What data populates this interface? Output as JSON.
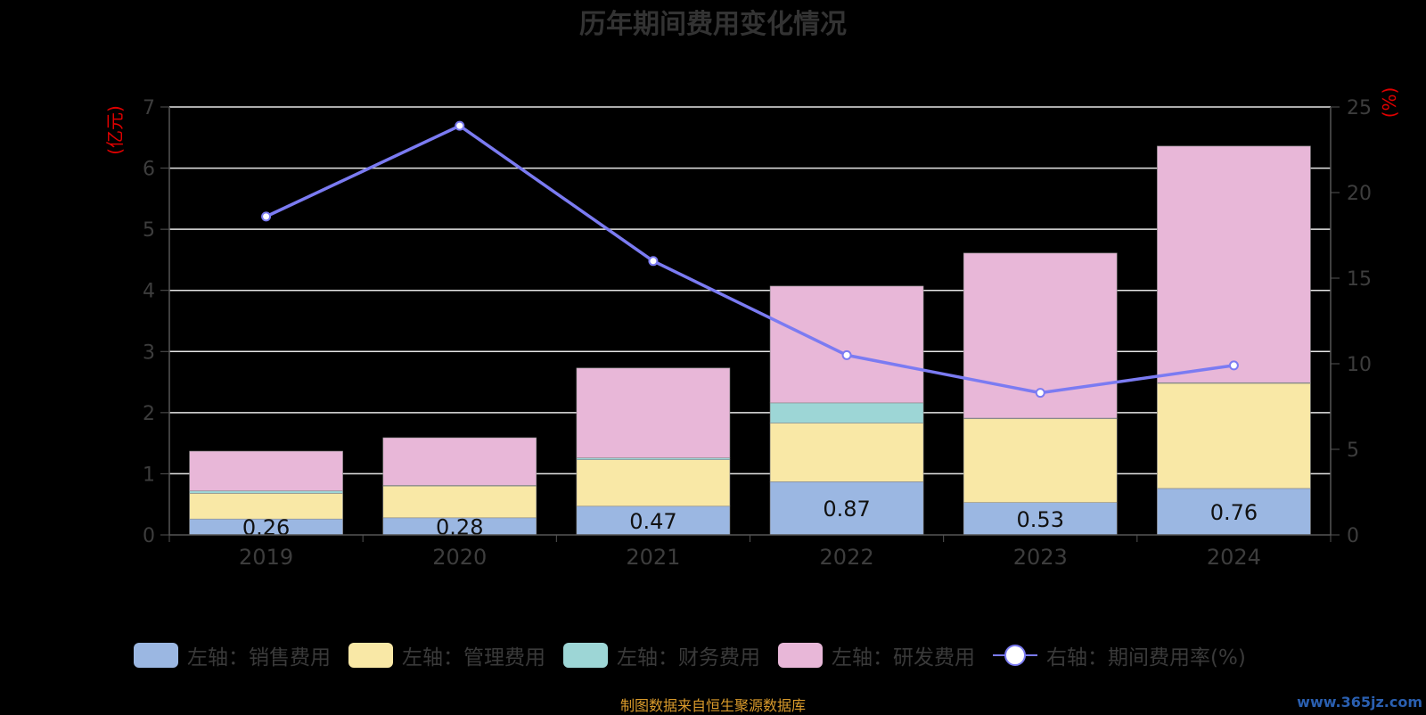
{
  "title": "历年期间费用变化情况",
  "source": "制图数据来自恒生聚源数据库",
  "watermark": "www.365jz.com",
  "colors": {
    "sales": "#9bb7e2",
    "admin": "#f9e8a6",
    "finance": "#9dd6d6",
    "rd": "#e8b7d8",
    "rate": "#7b7bf2",
    "axis_unit": "#e00000"
  },
  "chart_data": {
    "type": "bar",
    "categories": [
      "2019",
      "2020",
      "2021",
      "2022",
      "2023",
      "2024"
    ],
    "series": [
      {
        "name": "左轴：销售费用",
        "axis": "left",
        "values": [
          0.26,
          0.28,
          0.47,
          0.87,
          0.53,
          0.76
        ],
        "show_labels": true
      },
      {
        "name": "左轴：管理费用",
        "axis": "left",
        "values": [
          0.42,
          0.52,
          0.76,
          0.96,
          1.37,
          1.72
        ]
      },
      {
        "name": "左轴：财务费用",
        "axis": "left",
        "values": [
          0.04,
          0.01,
          0.03,
          0.33,
          0.01,
          0.01
        ]
      },
      {
        "name": "左轴：研发费用",
        "axis": "left",
        "values": [
          0.65,
          0.78,
          1.47,
          1.91,
          2.7,
          3.87
        ]
      },
      {
        "name": "右轴：期间费用率(%)",
        "axis": "right",
        "type": "line",
        "values": [
          18.6,
          23.9,
          16.0,
          10.5,
          8.3,
          9.9
        ]
      }
    ],
    "ylabel": "(亿元)",
    "y2label": "(%)",
    "ylim": [
      0,
      7
    ],
    "y2lim": [
      0,
      25
    ],
    "yticks": [
      0,
      1,
      2,
      3,
      4,
      5,
      6,
      7
    ],
    "y2ticks": [
      0,
      5,
      10,
      15,
      20,
      25
    ],
    "grid": true,
    "legend_position": "bottom"
  }
}
